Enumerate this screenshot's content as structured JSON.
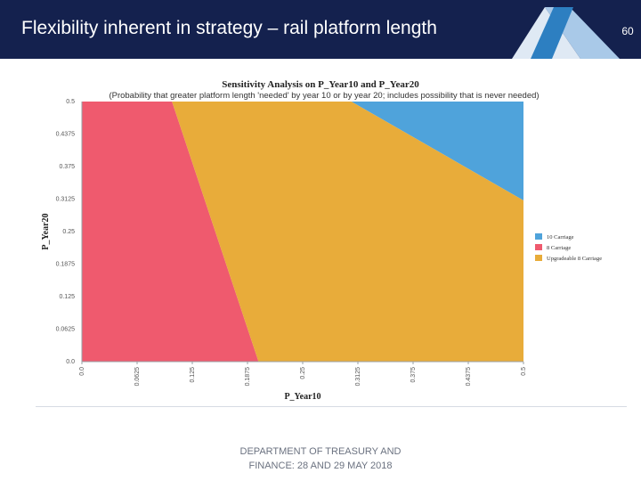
{
  "slide": {
    "title": "Flexibility inherent in strategy – rail platform length",
    "page_number": "60",
    "footer_line1": "DEPARTMENT OF TREASURY AND",
    "footer_line2": "FINANCE: 28 AND 29 MAY 2018",
    "header_color": "#14214e",
    "accent_colors": [
      "#2d7fc1",
      "#a9c9e8",
      "#dfe9f4"
    ]
  },
  "chart_data": {
    "type": "area",
    "title": "Sensitivity Analysis on P_Year10 and P_Year20",
    "subtitle": "(Probability that greater platform length 'needed' by year 10 or by year 20; includes possibility that is never needed)",
    "xlabel": "P_Year10",
    "ylabel": "P_Year20",
    "xlim": [
      0,
      0.5
    ],
    "ylim": [
      0,
      0.5
    ],
    "x_ticks": [
      "0.0",
      "0.0625",
      "0.125",
      "0.1875",
      "0.25",
      "0.3125",
      "0.375",
      "0.4375",
      "0.5"
    ],
    "y_ticks": [
      "0.0",
      "0.0625",
      "0.125",
      "0.1875",
      "0.25",
      "0.3125",
      "0.375",
      "0.4375",
      "0.5"
    ],
    "grid": false,
    "legend_position": "right",
    "regions": [
      {
        "name": "10 Carriage",
        "color": "#4fa3db",
        "polygon": [
          [
            0.305,
            0.5
          ],
          [
            0.5,
            0.5
          ],
          [
            0.5,
            0.31
          ]
        ]
      },
      {
        "name": "8 Carriage",
        "color": "#ef5a6e",
        "polygon": [
          [
            0,
            0
          ],
          [
            0.2,
            0
          ],
          [
            0.102,
            0.5
          ],
          [
            0,
            0.5
          ]
        ]
      },
      {
        "name": "Upgradeable 8 Carriage",
        "color": "#e8ac3a",
        "polygon": [
          [
            0.2,
            0
          ],
          [
            0.5,
            0
          ],
          [
            0.5,
            0.31
          ],
          [
            0.305,
            0.5
          ],
          [
            0.102,
            0.5
          ]
        ]
      }
    ]
  }
}
